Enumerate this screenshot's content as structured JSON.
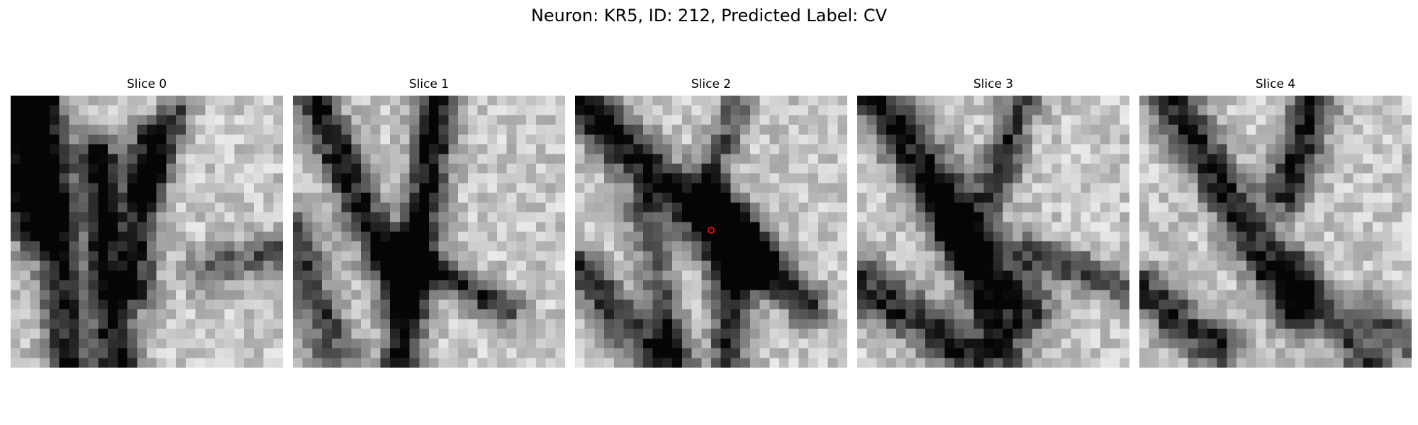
{
  "figure_title": "Neuron: KR5, ID: 212, Predicted Label: CV",
  "grid_size": 28,
  "marker_color": "#e01010",
  "slices": [
    {
      "title": "Slice 0",
      "seed": 11,
      "strokes": [
        {
          "x1": 3,
          "y1": 0,
          "x2": 6,
          "y2": 28,
          "w": 1.6,
          "d": 0.75
        },
        {
          "x1": 9,
          "y1": 6,
          "x2": 11,
          "y2": 28,
          "w": 1.4,
          "d": 0.85
        },
        {
          "x1": 14,
          "y1": 4,
          "x2": 13,
          "y2": 20,
          "w": 1.3,
          "d": 0.7
        },
        {
          "x1": 0,
          "y1": 0,
          "x2": 2,
          "y2": 12,
          "w": 2.5,
          "d": 0.8
        },
        {
          "x1": 17,
          "y1": 2,
          "x2": 14,
          "y2": 10,
          "w": 1.2,
          "d": 0.6
        },
        {
          "x1": 20,
          "y1": 18,
          "x2": 28,
          "y2": 16,
          "w": 1.5,
          "d": 0.45
        }
      ]
    },
    {
      "title": "Slice 1",
      "seed": 23,
      "strokes": [
        {
          "x1": 2,
          "y1": 0,
          "x2": 11,
          "y2": 20,
          "w": 1.5,
          "d": 0.8
        },
        {
          "x1": 15,
          "y1": 0,
          "x2": 11,
          "y2": 28,
          "w": 1.4,
          "d": 0.85
        },
        {
          "x1": 11,
          "y1": 16,
          "x2": 22,
          "y2": 22,
          "w": 1.2,
          "d": 0.65
        },
        {
          "x1": 0,
          "y1": 14,
          "x2": 4,
          "y2": 26,
          "w": 1.8,
          "d": 0.55
        }
      ]
    },
    {
      "title": "Slice 2",
      "seed": 37,
      "strokes": [
        {
          "x1": 0,
          "y1": 0,
          "x2": 18,
          "y2": 18,
          "w": 1.8,
          "d": 0.85
        },
        {
          "x1": 14,
          "y1": 10,
          "x2": 24,
          "y2": 22,
          "w": 1.5,
          "d": 0.7
        },
        {
          "x1": 0,
          "y1": 18,
          "x2": 10,
          "y2": 28,
          "w": 1.7,
          "d": 0.65
        },
        {
          "x1": 16,
          "y1": 14,
          "x2": 16,
          "y2": 28,
          "w": 1.4,
          "d": 0.7
        },
        {
          "x1": 7,
          "y1": 12,
          "x2": 10,
          "y2": 26,
          "w": 1.2,
          "d": 0.5
        },
        {
          "x1": 17,
          "y1": 0,
          "x2": 14,
          "y2": 8,
          "w": 1.2,
          "d": 0.5
        }
      ]
    },
    {
      "title": "Slice 3",
      "seed": 41,
      "strokes": [
        {
          "x1": 2,
          "y1": 0,
          "x2": 17,
          "y2": 22,
          "w": 2.0,
          "d": 0.8
        },
        {
          "x1": 0,
          "y1": 19,
          "x2": 12,
          "y2": 27,
          "w": 1.8,
          "d": 0.7
        },
        {
          "x1": 17,
          "y1": 0,
          "x2": 14,
          "y2": 10,
          "w": 1.3,
          "d": 0.65
        },
        {
          "x1": 18,
          "y1": 16,
          "x2": 28,
          "y2": 20,
          "w": 1.3,
          "d": 0.55
        },
        {
          "x1": 8,
          "y1": 10,
          "x2": 16,
          "y2": 28,
          "w": 1.3,
          "d": 0.55
        }
      ]
    },
    {
      "title": "Slice 4",
      "seed": 53,
      "strokes": [
        {
          "x1": 3,
          "y1": 0,
          "x2": 16,
          "y2": 22,
          "w": 1.7,
          "d": 0.75
        },
        {
          "x1": 18,
          "y1": 0,
          "x2": 15,
          "y2": 10,
          "w": 1.6,
          "d": 0.75
        },
        {
          "x1": 0,
          "y1": 20,
          "x2": 8,
          "y2": 26,
          "w": 1.7,
          "d": 0.7
        },
        {
          "x1": 16,
          "y1": 18,
          "x2": 24,
          "y2": 28,
          "w": 1.5,
          "d": 0.6
        },
        {
          "x1": 24,
          "y1": 22,
          "x2": 28,
          "y2": 26,
          "w": 1.2,
          "d": 0.5
        }
      ]
    }
  ]
}
